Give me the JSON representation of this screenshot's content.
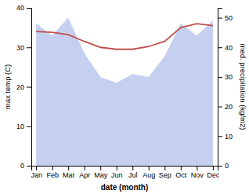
{
  "chart_data": {
    "type": "line",
    "xlabel": "date (month)",
    "ylabel": "max temp (C)",
    "y2label": "med. precipitation (kg/m2)",
    "categories": [
      "Jan",
      "Feb",
      "Mar",
      "Apr",
      "May",
      "Jun",
      "Jul",
      "Aug",
      "Sep",
      "Oct",
      "Nov",
      "Dec"
    ],
    "series": [
      {
        "type": "area",
        "axis": "y2",
        "color": "#c5cff0",
        "values": [
          48,
          44,
          50,
          38,
          30,
          28,
          31,
          30,
          37,
          48,
          44,
          49
        ]
      },
      {
        "type": "line",
        "color": "#c0504d",
        "values": [
          34.0,
          33.8,
          33.2,
          31.5,
          30.0,
          29.5,
          29.5,
          30.2,
          31.5,
          35.0,
          36.0,
          35.5
        ]
      }
    ],
    "ylim": [
      0,
      40
    ],
    "yticks": [
      0,
      10,
      20,
      30,
      40
    ],
    "y2lim": [
      0,
      53.33
    ],
    "y2ticks": [
      0,
      10,
      20,
      30,
      40,
      50
    ]
  }
}
